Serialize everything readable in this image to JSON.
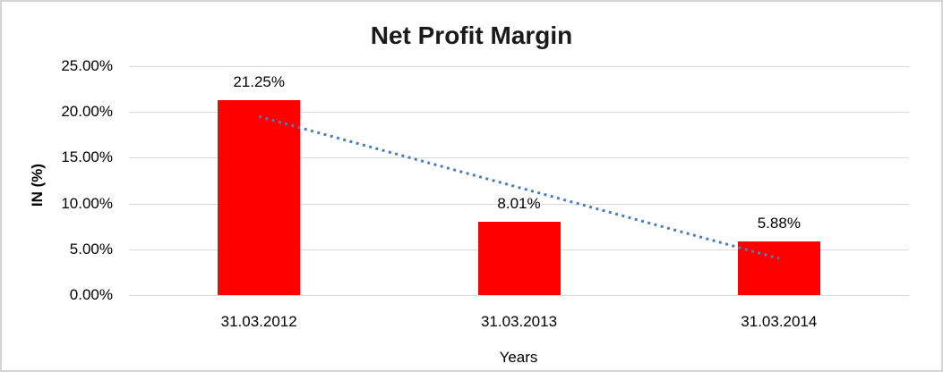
{
  "chart_data": {
    "type": "bar",
    "title": "Net Profit Margin",
    "categories": [
      "31.03.2012",
      "31.03.2013",
      "31.03.2014"
    ],
    "values": [
      21.25,
      8.01,
      5.88
    ],
    "data_labels": [
      "21.25%",
      "8.01%",
      "5.88%"
    ],
    "xlabel": "Years",
    "ylabel": "IN (%)",
    "ylim": [
      0,
      25
    ],
    "ytick_step": 5,
    "ytick_labels": [
      "0.00%",
      "5.00%",
      "10.00%",
      "15.00%",
      "20.00%",
      "25.00%"
    ],
    "grid": true,
    "legend": "none",
    "bar_color": "#ff0000",
    "gridline_color": "#d9d9d9",
    "trendline": {
      "type": "linear",
      "style": "dotted",
      "color": "#4a7ebb",
      "start_value": 19.5,
      "end_value": 4.0
    }
  }
}
